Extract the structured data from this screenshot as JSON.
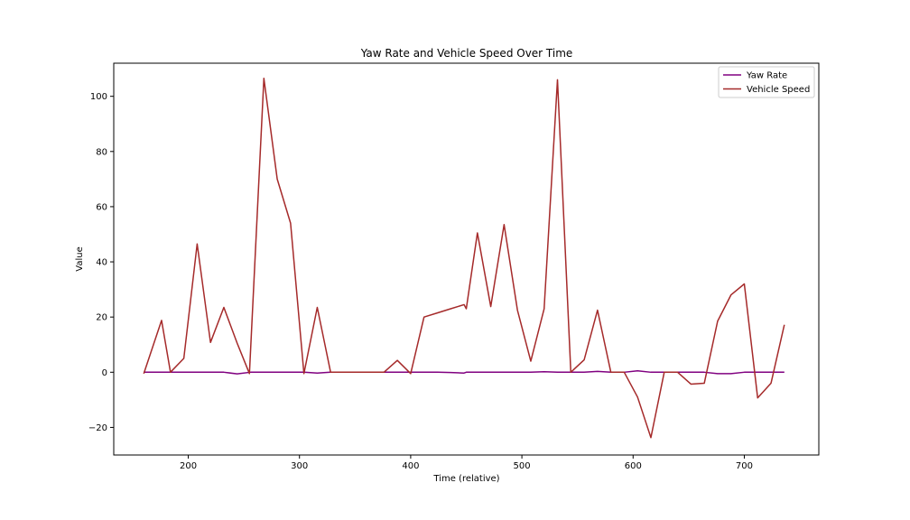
{
  "chart_data": {
    "type": "line",
    "title": "Yaw Rate and Vehicle Speed Over Time",
    "xlabel": "Time (relative)",
    "ylabel": "Value",
    "xlim": [
      133,
      767
    ],
    "ylim": [
      -30,
      112
    ],
    "x_ticks": [
      200,
      300,
      400,
      500,
      600,
      700
    ],
    "y_ticks": [
      -20,
      0,
      20,
      40,
      60,
      80,
      100
    ],
    "grid": false,
    "legend_position": "top-right",
    "series": [
      {
        "name": "Yaw Rate",
        "color": "#800080",
        "points": [
          [
            160,
            0
          ],
          [
            176,
            0
          ],
          [
            184,
            0
          ],
          [
            196,
            0
          ],
          [
            208,
            0
          ],
          [
            220,
            0
          ],
          [
            232,
            0
          ],
          [
            244,
            -0.6
          ],
          [
            256,
            0
          ],
          [
            268,
            0
          ],
          [
            280,
            0
          ],
          [
            292,
            0
          ],
          [
            304,
            0
          ],
          [
            316,
            -0.3
          ],
          [
            328,
            0
          ],
          [
            340,
            0
          ],
          [
            352,
            0
          ],
          [
            364,
            0
          ],
          [
            376,
            0
          ],
          [
            388,
            0
          ],
          [
            400,
            0
          ],
          [
            412,
            0
          ],
          [
            424,
            0
          ],
          [
            436,
            -0.1
          ],
          [
            448,
            -0.3
          ],
          [
            450,
            0
          ],
          [
            460,
            0
          ],
          [
            472,
            0
          ],
          [
            484,
            0
          ],
          [
            496,
            0
          ],
          [
            508,
            0
          ],
          [
            520,
            0.2
          ],
          [
            532,
            0
          ],
          [
            544,
            0
          ],
          [
            556,
            0
          ],
          [
            568,
            0.3
          ],
          [
            580,
            0
          ],
          [
            592,
            0
          ],
          [
            604,
            0.5
          ],
          [
            616,
            0
          ],
          [
            628,
            0
          ],
          [
            640,
            0
          ],
          [
            652,
            0
          ],
          [
            664,
            0
          ],
          [
            676,
            -0.5
          ],
          [
            688,
            -0.5
          ],
          [
            700,
            0
          ],
          [
            712,
            0
          ],
          [
            724,
            0
          ],
          [
            736,
            0
          ]
        ]
      },
      {
        "name": "Vehicle Speed",
        "color": "#a52a2a",
        "points": [
          [
            160,
            -0.5
          ],
          [
            176,
            18.8
          ],
          [
            184,
            0
          ],
          [
            196,
            5
          ],
          [
            208,
            46.5
          ],
          [
            220,
            10.8
          ],
          [
            232,
            23.5
          ],
          [
            244,
            10.5
          ],
          [
            255,
            -0.5
          ],
          [
            268,
            106.5
          ],
          [
            280,
            70
          ],
          [
            292,
            54
          ],
          [
            304,
            -0.5
          ],
          [
            316,
            23.5
          ],
          [
            328,
            0
          ],
          [
            340,
            0
          ],
          [
            352,
            0
          ],
          [
            364,
            0
          ],
          [
            376,
            0
          ],
          [
            388,
            4.3
          ],
          [
            400,
            -0.5
          ],
          [
            412,
            20
          ],
          [
            424,
            21.5
          ],
          [
            436,
            23
          ],
          [
            448,
            24.5
          ],
          [
            450,
            23
          ],
          [
            460,
            50.5
          ],
          [
            472,
            23.8
          ],
          [
            484,
            53.5
          ],
          [
            496,
            22.5
          ],
          [
            508,
            4
          ],
          [
            520,
            23
          ],
          [
            532,
            106
          ],
          [
            544,
            0
          ],
          [
            556,
            4.5
          ],
          [
            568,
            22.5
          ],
          [
            580,
            0
          ],
          [
            592,
            0
          ],
          [
            604,
            -9
          ],
          [
            616,
            -23.7
          ],
          [
            628,
            0
          ],
          [
            640,
            0
          ],
          [
            652,
            -4.3
          ],
          [
            664,
            -4
          ],
          [
            676,
            18.5
          ],
          [
            688,
            28
          ],
          [
            700,
            32
          ],
          [
            712,
            -9.3
          ],
          [
            724,
            -4
          ],
          [
            736,
            17.2
          ]
        ]
      }
    ]
  }
}
